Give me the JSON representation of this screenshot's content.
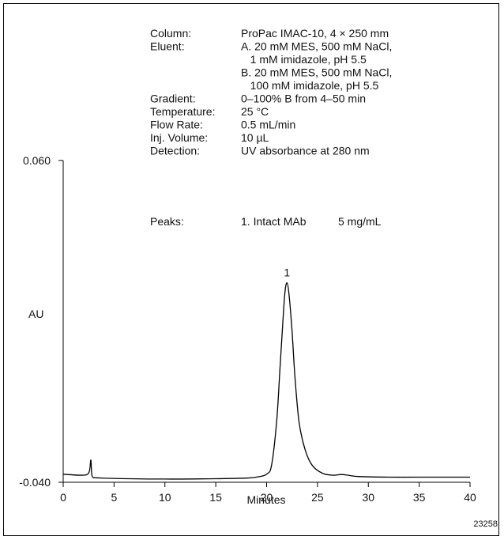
{
  "chart_data": {
    "type": "line",
    "xlabel": "Minutes",
    "ylabel": "AU",
    "xlim": [
      0,
      40
    ],
    "ylim": [
      -0.04,
      0.06
    ],
    "x_ticks": [
      "0",
      "5",
      "10",
      "15",
      "20",
      "25",
      "30",
      "35",
      "40"
    ],
    "y_ticks": [
      "0.060",
      "-0.040"
    ],
    "grid": false,
    "series": [
      {
        "x": [
          0,
          2.0,
          2.55,
          2.7,
          2.75,
          2.8,
          2.9,
          3.2,
          5,
          10,
          15,
          18,
          19,
          20,
          20.5,
          21,
          21.3,
          21.6,
          21.8,
          22.0,
          22.2,
          22.5,
          22.8,
          23.2,
          23.8,
          24.5,
          25.5,
          26.5,
          27.3,
          28.0,
          29,
          32,
          35,
          40
        ],
        "y": [
          -0.0375,
          -0.0378,
          -0.0368,
          -0.0332,
          -0.0341,
          -0.0372,
          -0.0384,
          -0.0386,
          -0.0388,
          -0.039,
          -0.0389,
          -0.0387,
          -0.0384,
          -0.0375,
          -0.0345,
          -0.0205,
          -0.0055,
          0.01,
          0.019,
          0.022,
          0.0185,
          0.007,
          -0.008,
          -0.0215,
          -0.03,
          -0.0348,
          -0.0372,
          -0.0378,
          -0.0376,
          -0.0378,
          -0.0382,
          -0.0384,
          -0.0384,
          -0.0384
        ]
      }
    ],
    "peak_labels": [
      {
        "label": "1",
        "x": 22.0,
        "y": 0.022
      }
    ]
  },
  "conditions": [
    {
      "key": "Column:",
      "lines": [
        "ProPac IMAC-10, 4 × 250 mm"
      ]
    },
    {
      "key": "Eluent:",
      "lines": [
        "A. 20 mM MES, 500 mM NaCl,",
        "   1 mM imidazole, pH 5.5",
        "B. 20 mM MES, 500 mM NaCl,",
        "   100 mM imidazole, pH 5.5"
      ]
    },
    {
      "key": "Gradient:",
      "lines": [
        "0–100% B from 4–50 min"
      ]
    },
    {
      "key": "Temperature:",
      "lines": [
        "25 °C"
      ]
    },
    {
      "key": "Flow Rate:",
      "lines": [
        "0.5 mL/min"
      ]
    },
    {
      "key": "Inj. Volume:",
      "lines": [
        "10 µL"
      ]
    },
    {
      "key": "Detection:",
      "lines": [
        "UV absorbance at 280 nm"
      ]
    }
  ],
  "peaks_info": {
    "key": "Peaks:",
    "name": "1.  Intact MAb",
    "conc": "5 mg/mL"
  },
  "figure_id": "23258"
}
